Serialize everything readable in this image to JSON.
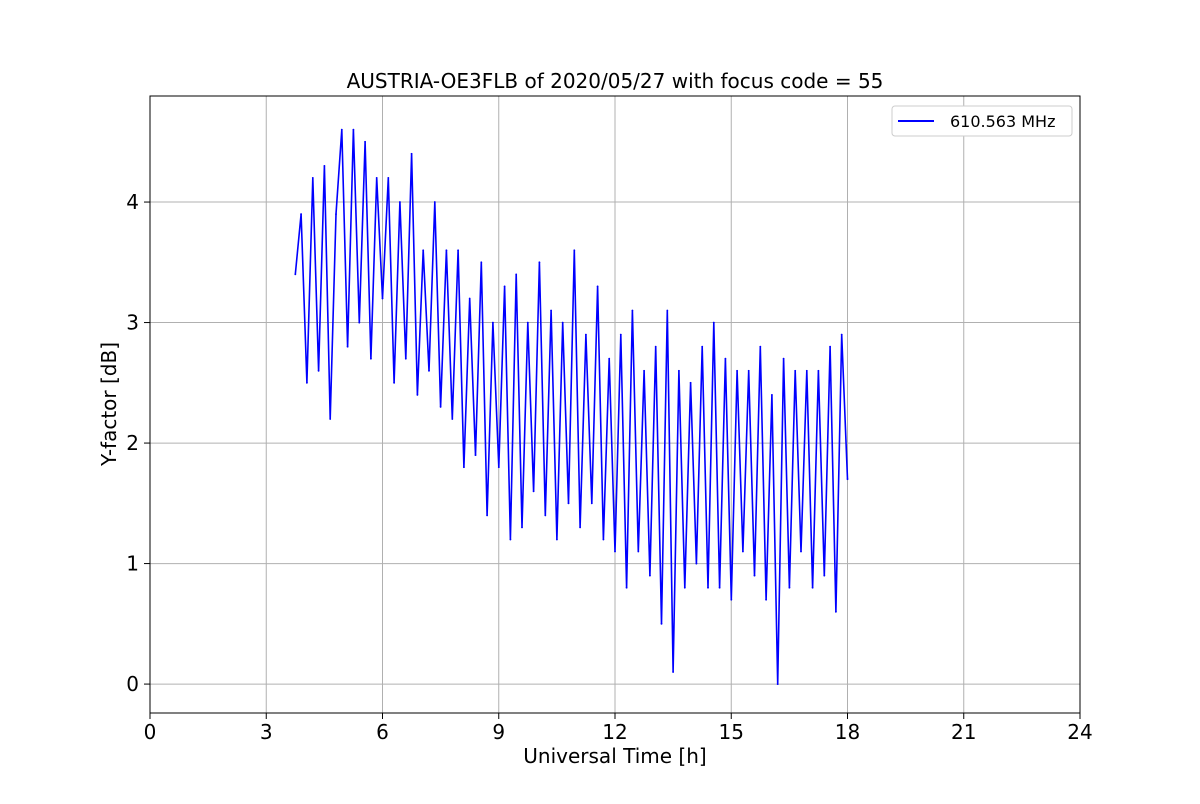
{
  "chart_data": {
    "type": "line",
    "title": "AUSTRIA-OE3FLB of 2020/05/27 with focus code = 55",
    "xlabel": "Universal Time [h]",
    "ylabel": "Y-factor [dB]",
    "xlim": [
      0,
      24
    ],
    "ylim": [
      -0.24,
      4.88
    ],
    "xticks": [
      0,
      3,
      6,
      9,
      12,
      15,
      18,
      21,
      24
    ],
    "xtick_labels": [
      "0",
      "3",
      "6",
      "9",
      "12",
      "15",
      "18",
      "21",
      "24"
    ],
    "yticks": [
      0,
      1,
      2,
      3,
      4
    ],
    "ytick_labels": [
      "0",
      "1",
      "2",
      "3",
      "4"
    ],
    "grid": true,
    "legend_position": "top-right",
    "colors": {
      "series": "#0000ff",
      "grid": "#b0b0b0",
      "axes": "#000000"
    },
    "series": [
      {
        "name": "610.563 MHz",
        "color": "#0000ff",
        "x": [
          3.75,
          3.9,
          4.05,
          4.2,
          4.35,
          4.5,
          4.65,
          4.8,
          4.95,
          5.1,
          5.25,
          5.4,
          5.55,
          5.7,
          5.85,
          6.0,
          6.15,
          6.3,
          6.45,
          6.6,
          6.75,
          6.9,
          7.05,
          7.2,
          7.35,
          7.5,
          7.65,
          7.8,
          7.95,
          8.1,
          8.25,
          8.4,
          8.55,
          8.7,
          8.85,
          9.0,
          9.15,
          9.3,
          9.45,
          9.6,
          9.75,
          9.9,
          10.05,
          10.2,
          10.35,
          10.5,
          10.65,
          10.8,
          10.95,
          11.1,
          11.25,
          11.4,
          11.55,
          11.7,
          11.85,
          12.0,
          12.15,
          12.3,
          12.45,
          12.6,
          12.75,
          12.9,
          13.05,
          13.2,
          13.35,
          13.5,
          13.65,
          13.8,
          13.95,
          14.1,
          14.25,
          14.4,
          14.55,
          14.7,
          14.85,
          15.0,
          15.15,
          15.3,
          15.45,
          15.6,
          15.75,
          15.9,
          16.05,
          16.2,
          16.35,
          16.5,
          16.65,
          16.8,
          16.95,
          17.1,
          17.25,
          17.4,
          17.55,
          17.7,
          17.85,
          18.0
        ],
        "y": [
          3.4,
          3.9,
          2.5,
          4.2,
          2.6,
          4.3,
          2.2,
          3.9,
          4.6,
          2.8,
          4.6,
          3.0,
          4.5,
          2.7,
          4.2,
          3.2,
          4.2,
          2.5,
          4.0,
          2.7,
          4.4,
          2.4,
          3.6,
          2.6,
          4.0,
          2.3,
          3.6,
          2.2,
          3.6,
          1.8,
          3.2,
          1.9,
          3.5,
          1.4,
          3.0,
          1.8,
          3.3,
          1.2,
          3.4,
          1.3,
          3.0,
          1.6,
          3.5,
          1.4,
          3.1,
          1.2,
          3.0,
          1.5,
          3.6,
          1.3,
          2.9,
          1.5,
          3.3,
          1.2,
          2.7,
          1.1,
          2.9,
          0.8,
          3.1,
          1.1,
          2.6,
          0.9,
          2.8,
          0.5,
          3.1,
          0.1,
          2.6,
          0.8,
          2.5,
          1.0,
          2.8,
          0.8,
          3.0,
          0.8,
          2.7,
          0.7,
          2.6,
          1.1,
          2.6,
          0.9,
          2.8,
          0.7,
          2.4,
          0.0,
          2.7,
          0.8,
          2.6,
          1.1,
          2.6,
          0.8,
          2.6,
          0.9,
          2.8,
          0.6,
          2.9,
          1.7
        ]
      }
    ]
  }
}
